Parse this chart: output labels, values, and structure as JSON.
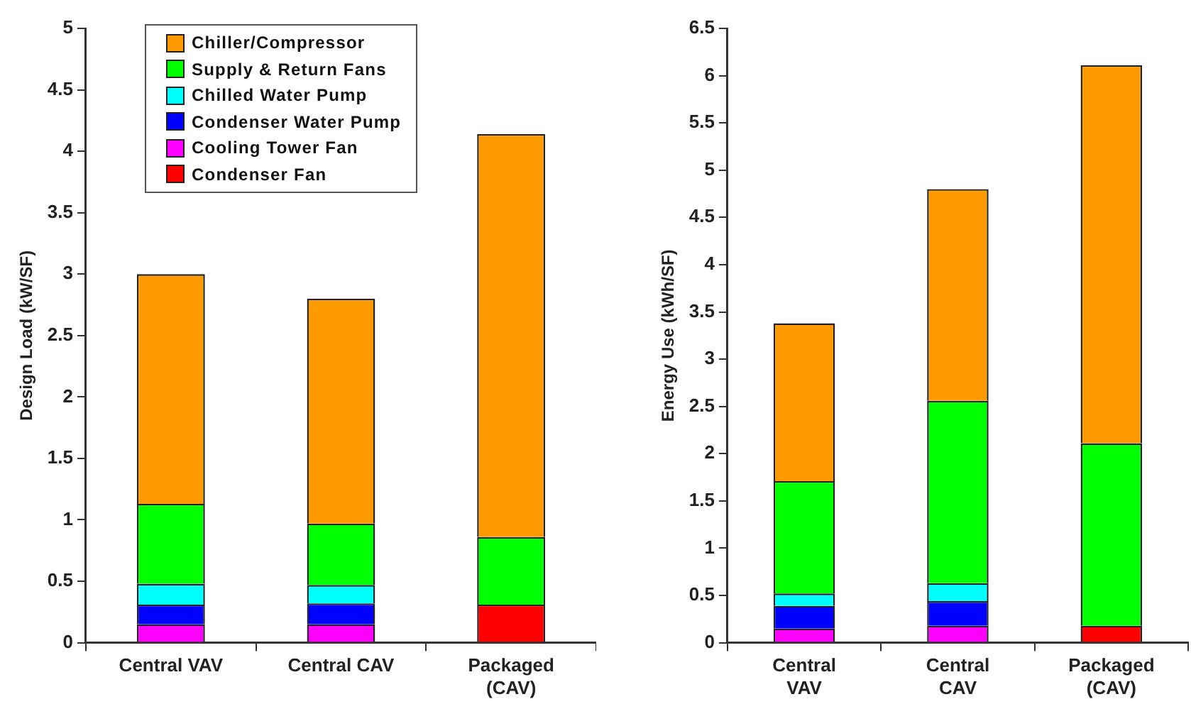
{
  "chart_data": [
    {
      "type": "bar",
      "stacked": true,
      "ylabel": "Design Load (kW/SF)",
      "categories": [
        "Central VAV",
        "Central CAV",
        "Packaged\n(CAV)"
      ],
      "ylim": [
        0,
        5
      ],
      "yticks": [
        0,
        0.5,
        1,
        1.5,
        2,
        2.5,
        3,
        3.5,
        4,
        4.5,
        5
      ],
      "grid": false,
      "legend": "top",
      "series": [
        {
          "name": "Condenser Fan",
          "color": "#ff0000",
          "values": [
            null,
            null,
            0.31
          ]
        },
        {
          "name": "Cooling Tower Fan",
          "color": "#ff00ff",
          "values": [
            0.15,
            0.15,
            null
          ]
        },
        {
          "name": "Condenser Water Pump",
          "color": "#0000ff",
          "values": [
            0.16,
            0.17,
            null
          ]
        },
        {
          "name": "Chilled Water Pump",
          "color": "#00ffff",
          "values": [
            0.17,
            0.15,
            null
          ]
        },
        {
          "name": "Supply & Return Fans",
          "color": "#00ff00",
          "values": [
            0.65,
            0.5,
            0.55
          ]
        },
        {
          "name": "Chiller/Compressor",
          "color": "#ff9900",
          "values": [
            1.87,
            1.83,
            3.28
          ]
        }
      ]
    },
    {
      "type": "bar",
      "stacked": true,
      "ylabel": "Energy Use (kWh/SF)",
      "categories": [
        "Central\nVAV",
        "Central\nCAV",
        "Packaged\n(CAV)"
      ],
      "ylim": [
        0,
        6.5
      ],
      "yticks": [
        0,
        0.5,
        1,
        1.5,
        2,
        2.5,
        3,
        3.5,
        4,
        4.5,
        5,
        5.5,
        6,
        6.5
      ],
      "grid": false,
      "series": [
        {
          "color": "#ff0000",
          "values": [
            null,
            null,
            0.18
          ]
        },
        {
          "color": "#ff00ff",
          "values": [
            0.15,
            0.18,
            null
          ]
        },
        {
          "color": "#0000ff",
          "values": [
            0.24,
            0.26,
            null
          ]
        },
        {
          "color": "#00ffff",
          "values": [
            0.13,
            0.19,
            null
          ]
        },
        {
          "color": "#00ff00",
          "values": [
            1.19,
            1.93,
            1.93
          ]
        },
        {
          "color": "#ff9900",
          "values": [
            1.67,
            2.24,
            4.0
          ]
        }
      ]
    }
  ]
}
